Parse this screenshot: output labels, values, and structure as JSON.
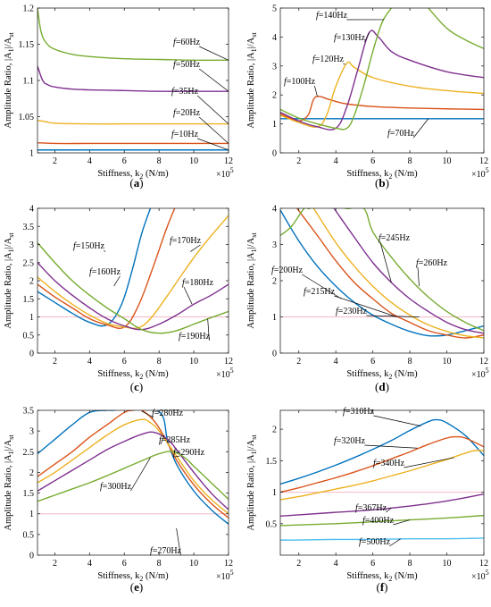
{
  "chart_data": [
    {
      "panel": "a",
      "type": "line",
      "xlabel": "Stiffness, k2 (N/m)",
      "ylabel": "Amplitude Ratio, |A1|/Ast",
      "x_multiplier": "×10^5",
      "xlim": [
        1,
        12
      ],
      "ylim": [
        1.0,
        1.2
      ],
      "xticks": [
        2,
        4,
        6,
        8,
        10,
        12
      ],
      "yticks": [
        1,
        1.05,
        1.1,
        1.15,
        1.2
      ],
      "series": [
        {
          "name": "f=10Hz",
          "color": "#0072BD",
          "x": [
            1,
            2,
            4,
            6,
            8,
            10,
            12
          ],
          "values": [
            1.004,
            1.004,
            1.004,
            1.004,
            1.004,
            1.004,
            1.004
          ]
        },
        {
          "name": "f=20Hz",
          "color": "#D95319",
          "x": [
            1,
            2,
            4,
            6,
            8,
            10,
            12
          ],
          "values": [
            1.014,
            1.013,
            1.013,
            1.013,
            1.013,
            1.013,
            1.013
          ]
        },
        {
          "name": "f=35Hz",
          "color": "#EDB120",
          "x": [
            1,
            1.5,
            2,
            4,
            6,
            8,
            10,
            12
          ],
          "values": [
            1.045,
            1.043,
            1.041,
            1.04,
            1.04,
            1.04,
            1.04,
            1.04
          ]
        },
        {
          "name": "f=50Hz",
          "color": "#7E2F8E",
          "x": [
            1,
            1.3,
            1.6,
            2,
            3,
            4,
            6,
            8,
            10,
            12
          ],
          "values": [
            1.12,
            1.1,
            1.094,
            1.091,
            1.088,
            1.087,
            1.086,
            1.085,
            1.085,
            1.085
          ]
        },
        {
          "name": "f=60Hz",
          "color": "#77AC30",
          "x": [
            1,
            1.2,
            1.5,
            2,
            3,
            4,
            6,
            8,
            10,
            12
          ],
          "values": [
            1.2,
            1.168,
            1.152,
            1.143,
            1.136,
            1.133,
            1.13,
            1.129,
            1.128,
            1.128
          ]
        }
      ],
      "labels": [
        "f=10Hz",
        "f=20Hz",
        "f=35Hz",
        "f=50Hz",
        "f=60Hz"
      ]
    },
    {
      "panel": "b",
      "type": "line",
      "xlabel": "Stiffness, k2 (N/m)",
      "ylabel": "Amplitude Ratio, |A1|/Ast",
      "x_multiplier": "×10^5",
      "xlim": [
        1,
        12
      ],
      "ylim": [
        0,
        5
      ],
      "xticks": [
        2,
        4,
        6,
        8,
        10,
        12
      ],
      "yticks": [
        0,
        1,
        2,
        3,
        4,
        5
      ],
      "series": [
        {
          "name": "f=70Hz",
          "color": "#0072BD",
          "x": [
            1,
            2,
            4,
            6,
            8,
            10,
            12
          ],
          "values": [
            1.18,
            1.18,
            1.18,
            1.18,
            1.18,
            1.18,
            1.18
          ]
        },
        {
          "name": "f=100Hz",
          "color": "#D95319",
          "x": [
            1,
            1.5,
            2,
            2.5,
            2.8,
            3.1,
            3.6,
            4.5,
            6,
            8,
            10,
            12
          ],
          "values": [
            1.35,
            1.2,
            1.1,
            1.3,
            1.85,
            1.95,
            1.85,
            1.7,
            1.6,
            1.55,
            1.52,
            1.5
          ]
        },
        {
          "name": "f=120Hz",
          "color": "#EDB120",
          "x": [
            1,
            2,
            3,
            3.5,
            4,
            4.6,
            5,
            6,
            8,
            10,
            12
          ],
          "values": [
            1.3,
            1.05,
            0.9,
            1.3,
            2.3,
            3.1,
            2.95,
            2.6,
            2.3,
            2.15,
            2.05
          ]
        },
        {
          "name": "f=130Hz",
          "color": "#7E2F8E",
          "x": [
            1,
            2,
            3,
            4,
            4.6,
            5.2,
            5.8,
            6.3,
            7,
            8,
            10,
            12
          ],
          "values": [
            1.4,
            1.1,
            0.9,
            0.85,
            1.6,
            2.9,
            4.15,
            4.0,
            3.5,
            3.2,
            2.8,
            2.6
          ]
        },
        {
          "name": "f=140Hz",
          "color": "#77AC30",
          "x": [
            1,
            2,
            3,
            4,
            4.6,
            5,
            5.5,
            6,
            6.5,
            7.0
          ],
          "values": [
            1.5,
            1.2,
            1.0,
            0.85,
            0.85,
            1.3,
            2.3,
            3.5,
            4.5,
            5.0
          ]
        },
        {
          "name": "f=140Hz upper",
          "color": "#77AC30",
          "x": [
            9.0,
            10,
            11,
            12
          ],
          "values": [
            5.0,
            4.3,
            3.9,
            3.6
          ]
        }
      ],
      "labels": [
        "f=70Hz",
        "f=100Hz",
        "f=120Hz",
        "f=130Hz",
        "f=140Hz"
      ]
    },
    {
      "panel": "c",
      "type": "line",
      "xlabel": "Stiffness, k2 (N/m)",
      "ylabel": "Amplitude Ratio, |A1|/Ast",
      "x_multiplier": "×10^5",
      "xlim": [
        1,
        12
      ],
      "ylim": [
        0,
        4
      ],
      "xticks": [
        2,
        4,
        6,
        8,
        10,
        12
      ],
      "yticks": [
        0,
        0.5,
        1,
        1.5,
        2,
        2.5,
        3,
        3.5,
        4
      ],
      "reference_line": 1,
      "series": [
        {
          "name": "f=150Hz",
          "color": "#0072BD",
          "x": [
            1,
            2,
            3,
            4,
            5,
            5.8,
            6.4,
            7,
            7.5
          ],
          "values": [
            1.7,
            1.4,
            1.1,
            0.85,
            0.78,
            1.3,
            2.2,
            3.3,
            4.0
          ]
        },
        {
          "name": "f=160Hz",
          "color": "#D95319",
          "x": [
            1,
            2,
            3,
            4,
            5,
            6,
            6.8,
            7.6,
            8.4,
            8.9
          ],
          "values": [
            1.9,
            1.55,
            1.25,
            0.95,
            0.78,
            0.72,
            1.3,
            2.3,
            3.4,
            4.0
          ]
        },
        {
          "name": "f=170Hz",
          "color": "#EDB120",
          "x": [
            1,
            2,
            3,
            4,
            5,
            6,
            6.8,
            7.5,
            8.5,
            9.5,
            10.5,
            12
          ],
          "values": [
            2.1,
            1.7,
            1.35,
            1.05,
            0.82,
            0.72,
            0.7,
            0.95,
            1.6,
            2.3,
            2.95,
            3.8
          ]
        },
        {
          "name": "f=180Hz",
          "color": "#7E2F8E",
          "x": [
            1,
            2,
            3,
            4,
            5,
            6,
            7,
            8,
            9,
            10,
            11,
            12
          ],
          "values": [
            2.5,
            2.0,
            1.6,
            1.25,
            0.95,
            0.75,
            0.65,
            0.8,
            1.05,
            1.35,
            1.6,
            1.9
          ]
        },
        {
          "name": "f=190Hz",
          "color": "#77AC30",
          "x": [
            1,
            2,
            3,
            4,
            5,
            6,
            7,
            8,
            9,
            10,
            11,
            12
          ],
          "values": [
            3.05,
            2.5,
            2.0,
            1.6,
            1.25,
            0.95,
            0.65,
            0.55,
            0.62,
            0.8,
            0.98,
            1.15
          ]
        }
      ],
      "labels": [
        "f=150Hz",
        "f=160Hz",
        "f=170Hz",
        "f=180Hz",
        "f=190Hz"
      ]
    },
    {
      "panel": "d",
      "type": "line",
      "xlabel": "Stiffness, k2 (N/m)",
      "ylabel": "Amplitude Ratio, |A1|/Ast",
      "x_multiplier": "×10^5",
      "xlim": [
        1,
        12
      ],
      "ylim": [
        0,
        4
      ],
      "xticks": [
        2,
        4,
        6,
        8,
        10,
        12
      ],
      "yticks": [
        0,
        1,
        2,
        3,
        4
      ],
      "reference_line": 1,
      "series": [
        {
          "name": "f=200Hz",
          "color": "#0072BD",
          "x": [
            1,
            2,
            3,
            4,
            5,
            6,
            7,
            8,
            9,
            10,
            11,
            12
          ],
          "values": [
            3.95,
            3.1,
            2.4,
            1.85,
            1.4,
            1.05,
            0.8,
            0.6,
            0.48,
            0.5,
            0.62,
            0.75
          ]
        },
        {
          "name": "f=215Hz",
          "color": "#D95319",
          "x": [
            1.9,
            3,
            4,
            5,
            6,
            7,
            8,
            9,
            10,
            11,
            12
          ],
          "values": [
            4.0,
            3.25,
            2.55,
            1.95,
            1.5,
            1.1,
            0.85,
            0.62,
            0.5,
            0.42,
            0.5
          ]
        },
        {
          "name": "f=230Hz",
          "color": "#EDB120",
          "x": [
            2.8,
            4,
            5,
            6,
            7,
            8,
            9,
            10,
            11,
            12
          ],
          "values": [
            4.0,
            3.05,
            2.4,
            1.85,
            1.4,
            1.05,
            0.78,
            0.6,
            0.48,
            0.42
          ]
        },
        {
          "name": "f=245Hz",
          "color": "#7E2F8E",
          "x": [
            3.9,
            5,
            6,
            7,
            8,
            9,
            10,
            11,
            12
          ],
          "values": [
            4.0,
            3.2,
            2.5,
            1.95,
            1.5,
            1.15,
            0.85,
            0.65,
            0.55
          ]
        },
        {
          "name": "f=260Hz",
          "color": "#77AC30",
          "x": [
            1,
            1.6,
            2.3,
            2.6,
            3.4,
            4.5,
            5.5,
            6,
            7,
            8,
            9,
            10,
            11,
            12
          ],
          "values": [
            3.25,
            3.5,
            4.0,
            4.0,
            4.3,
            4.0,
            4.0,
            3.35,
            2.65,
            2.05,
            1.55,
            1.15,
            0.85,
            0.62
          ]
        }
      ],
      "labels": [
        "f=200Hz",
        "f=215Hz",
        "f=230Hz",
        "f=245Hz",
        "f=260Hz"
      ]
    },
    {
      "panel": "e",
      "type": "line",
      "xlabel": "Stiffness, k2 (N/m)",
      "ylabel": "Amplitude Ratio, |A1|/Ast",
      "x_multiplier": "×10^5",
      "xlim": [
        1,
        12
      ],
      "ylim": [
        0,
        3.5
      ],
      "xticks": [
        2,
        4,
        6,
        8,
        10,
        12
      ],
      "yticks": [
        0,
        0.5,
        1,
        1.5,
        2,
        2.5,
        3,
        3.5
      ],
      "reference_line": 1,
      "series": [
        {
          "name": "f=270Hz",
          "color": "#0072BD",
          "x": [
            1,
            2,
            3,
            4,
            5,
            5.3,
            7.9,
            8.5,
            9,
            10,
            11,
            12
          ],
          "values": [
            2.45,
            2.8,
            3.15,
            3.45,
            3.5,
            3.5,
            3.5,
            2.75,
            2.2,
            1.55,
            1.1,
            0.75
          ]
        },
        {
          "name": "f=280Hz",
          "color": "#D95319",
          "x": [
            1,
            2,
            3,
            4,
            5,
            6,
            6.5,
            7,
            7.8,
            8.5,
            9,
            10,
            11,
            12
          ],
          "values": [
            1.9,
            2.2,
            2.5,
            2.85,
            3.15,
            3.45,
            3.5,
            3.5,
            3.2,
            2.7,
            2.3,
            1.7,
            1.25,
            0.9
          ]
        },
        {
          "name": "f=285Hz",
          "color": "#EDB120",
          "x": [
            1,
            2,
            3,
            4,
            5,
            6,
            7,
            7.5,
            8,
            9,
            10,
            11,
            12
          ],
          "values": [
            1.75,
            2.0,
            2.3,
            2.6,
            2.9,
            3.15,
            3.28,
            3.2,
            3.0,
            2.4,
            1.8,
            1.35,
            1.0
          ]
        },
        {
          "name": "f=290Hz",
          "color": "#7E2F8E",
          "x": [
            1,
            2,
            3,
            4,
            5,
            6,
            7,
            7.7,
            8.5,
            9,
            10,
            11,
            12
          ],
          "values": [
            1.55,
            1.8,
            2.05,
            2.3,
            2.55,
            2.75,
            2.92,
            2.97,
            2.8,
            2.55,
            2.0,
            1.5,
            1.1
          ]
        },
        {
          "name": "f=300Hz",
          "color": "#77AC30",
          "x": [
            1,
            2,
            3,
            4,
            5,
            6,
            7,
            8,
            8.8,
            9.5,
            10,
            11,
            12
          ],
          "values": [
            1.3,
            1.45,
            1.6,
            1.75,
            1.92,
            2.1,
            2.28,
            2.45,
            2.5,
            2.35,
            2.15,
            1.75,
            1.35
          ]
        }
      ],
      "labels": [
        "f=270Hz",
        "f=280Hz",
        "f=285Hz",
        "f=290Hz",
        "f=300Hz"
      ]
    },
    {
      "panel": "f",
      "type": "line",
      "xlabel": "Stiffness, k2 (N/m)",
      "ylabel": "Amplitude Ratio, |A1|/Ast",
      "x_multiplier": "×10^5",
      "xlim": [
        1,
        12
      ],
      "ylim": [
        0,
        2.3
      ],
      "xticks": [
        2,
        4,
        6,
        8,
        10,
        12
      ],
      "yticks": [
        0.5,
        1,
        1.5,
        2
      ],
      "reference_line": 1,
      "series": [
        {
          "name": "f=310Hz",
          "color": "#0072BD",
          "x": [
            1,
            2,
            3,
            4,
            5,
            6,
            7,
            8,
            9,
            9.5,
            10,
            11,
            12
          ],
          "values": [
            1.13,
            1.22,
            1.32,
            1.43,
            1.55,
            1.68,
            1.82,
            1.98,
            2.12,
            2.15,
            2.1,
            1.9,
            1.58
          ]
        },
        {
          "name": "f=320Hz",
          "color": "#D95319",
          "x": [
            1,
            2,
            3,
            4,
            5,
            6,
            7,
            8,
            9,
            10,
            10.5,
            11,
            12
          ],
          "values": [
            1.0,
            1.07,
            1.15,
            1.23,
            1.32,
            1.42,
            1.53,
            1.64,
            1.76,
            1.86,
            1.88,
            1.86,
            1.72
          ]
        },
        {
          "name": "f=340Hz",
          "color": "#EDB120",
          "x": [
            1,
            2,
            3,
            4,
            5,
            6,
            7,
            8,
            9,
            10,
            11,
            11.5,
            12
          ],
          "values": [
            0.88,
            0.93,
            0.99,
            1.05,
            1.11,
            1.18,
            1.26,
            1.34,
            1.43,
            1.52,
            1.62,
            1.66,
            1.66
          ]
        },
        {
          "name": "f=367Hz",
          "color": "#7E2F8E",
          "x": [
            1,
            2,
            4,
            6,
            8,
            10,
            12
          ],
          "values": [
            0.62,
            0.64,
            0.68,
            0.72,
            0.78,
            0.86,
            0.97
          ]
        },
        {
          "name": "f=400Hz",
          "color": "#77AC30",
          "x": [
            1,
            2,
            4,
            6,
            8,
            10,
            12
          ],
          "values": [
            0.47,
            0.48,
            0.5,
            0.53,
            0.56,
            0.59,
            0.63
          ]
        },
        {
          "name": "f=500Hz",
          "color": "#4DBEEE",
          "x": [
            1,
            2,
            4,
            6,
            8,
            10,
            12
          ],
          "values": [
            0.24,
            0.24,
            0.25,
            0.25,
            0.26,
            0.26,
            0.27
          ]
        }
      ],
      "labels": [
        "f=310Hz",
        "f=320Hz",
        "f=340Hz",
        "f=367Hz",
        "f=400Hz",
        "f=500Hz"
      ]
    }
  ],
  "panel_captions": [
    "(a)",
    "(b)",
    "(c)",
    "(d)",
    "(e)",
    "(f)"
  ]
}
